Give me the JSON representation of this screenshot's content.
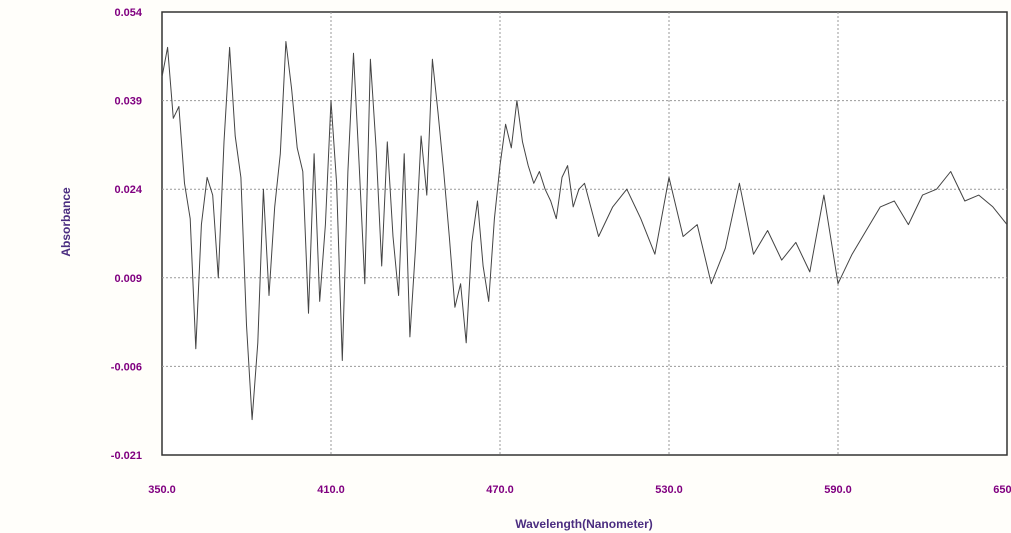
{
  "chart_data": {
    "type": "line",
    "title": "",
    "xlabel": "Wavelength(Nanometer)",
    "ylabel": "Absorbance",
    "xlim": [
      350,
      650
    ],
    "ylim": [
      -0.021,
      0.054
    ],
    "x_ticks": [
      "350.0",
      "410.0",
      "470.0",
      "530.0",
      "590.0",
      "650.0"
    ],
    "y_ticks": [
      "0.054",
      "0.039",
      "0.024",
      "0.009",
      "-0.006",
      "-0.021"
    ],
    "grid": true,
    "colors": {
      "line": "#444444",
      "tick_label": "#800080",
      "axis_title": "#4b2d80",
      "grid": "#999999"
    },
    "series": [
      {
        "x": [
          350,
          352,
          354,
          356,
          358,
          360,
          362,
          364,
          366,
          368,
          370,
          372,
          374,
          376,
          378,
          380,
          382,
          384,
          386,
          388,
          390,
          392,
          394,
          396,
          398,
          400,
          402,
          404,
          406,
          408,
          410,
          412,
          414,
          416,
          418,
          420,
          422,
          424,
          426,
          428,
          430,
          432,
          434,
          436,
          438,
          440,
          442,
          444,
          446,
          448,
          450,
          452,
          454,
          456,
          458,
          460,
          462,
          464,
          466,
          468,
          470,
          472,
          474,
          476,
          478,
          480,
          482,
          484,
          486,
          488,
          490,
          492,
          494,
          496,
          498,
          500,
          505,
          510,
          515,
          520,
          525,
          530,
          535,
          540,
          545,
          550,
          555,
          560,
          565,
          570,
          575,
          580,
          585,
          590,
          595,
          600,
          605,
          610,
          615,
          620,
          625,
          630,
          635,
          640,
          645,
          650
        ],
        "y": [
          0.043,
          0.048,
          0.036,
          0.038,
          0.025,
          0.019,
          -0.003,
          0.018,
          0.026,
          0.023,
          0.009,
          0.032,
          0.048,
          0.033,
          0.026,
          0.001,
          -0.015,
          -0.002,
          0.024,
          0.006,
          0.021,
          0.03,
          0.049,
          0.041,
          0.031,
          0.027,
          0.003,
          0.03,
          0.005,
          0.018,
          0.039,
          0.025,
          -0.005,
          0.027,
          0.047,
          0.028,
          0.008,
          0.046,
          0.031,
          0.011,
          0.032,
          0.016,
          0.006,
          0.03,
          -0.001,
          0.014,
          0.033,
          0.023,
          0.046,
          0.037,
          0.027,
          0.016,
          0.004,
          0.008,
          -0.002,
          0.015,
          0.022,
          0.011,
          0.005,
          0.019,
          0.028,
          0.035,
          0.031,
          0.039,
          0.032,
          0.028,
          0.025,
          0.027,
          0.024,
          0.022,
          0.019,
          0.026,
          0.028,
          0.021,
          0.024,
          0.025,
          0.016,
          0.021,
          0.024,
          0.019,
          0.013,
          0.026,
          0.016,
          0.018,
          0.008,
          0.014,
          0.025,
          0.013,
          0.017,
          0.012,
          0.015,
          0.01,
          0.023,
          0.008,
          0.013,
          0.017,
          0.021,
          0.022,
          0.018,
          0.023,
          0.024,
          0.027,
          0.022,
          0.023,
          0.021,
          0.018
        ]
      }
    ]
  }
}
